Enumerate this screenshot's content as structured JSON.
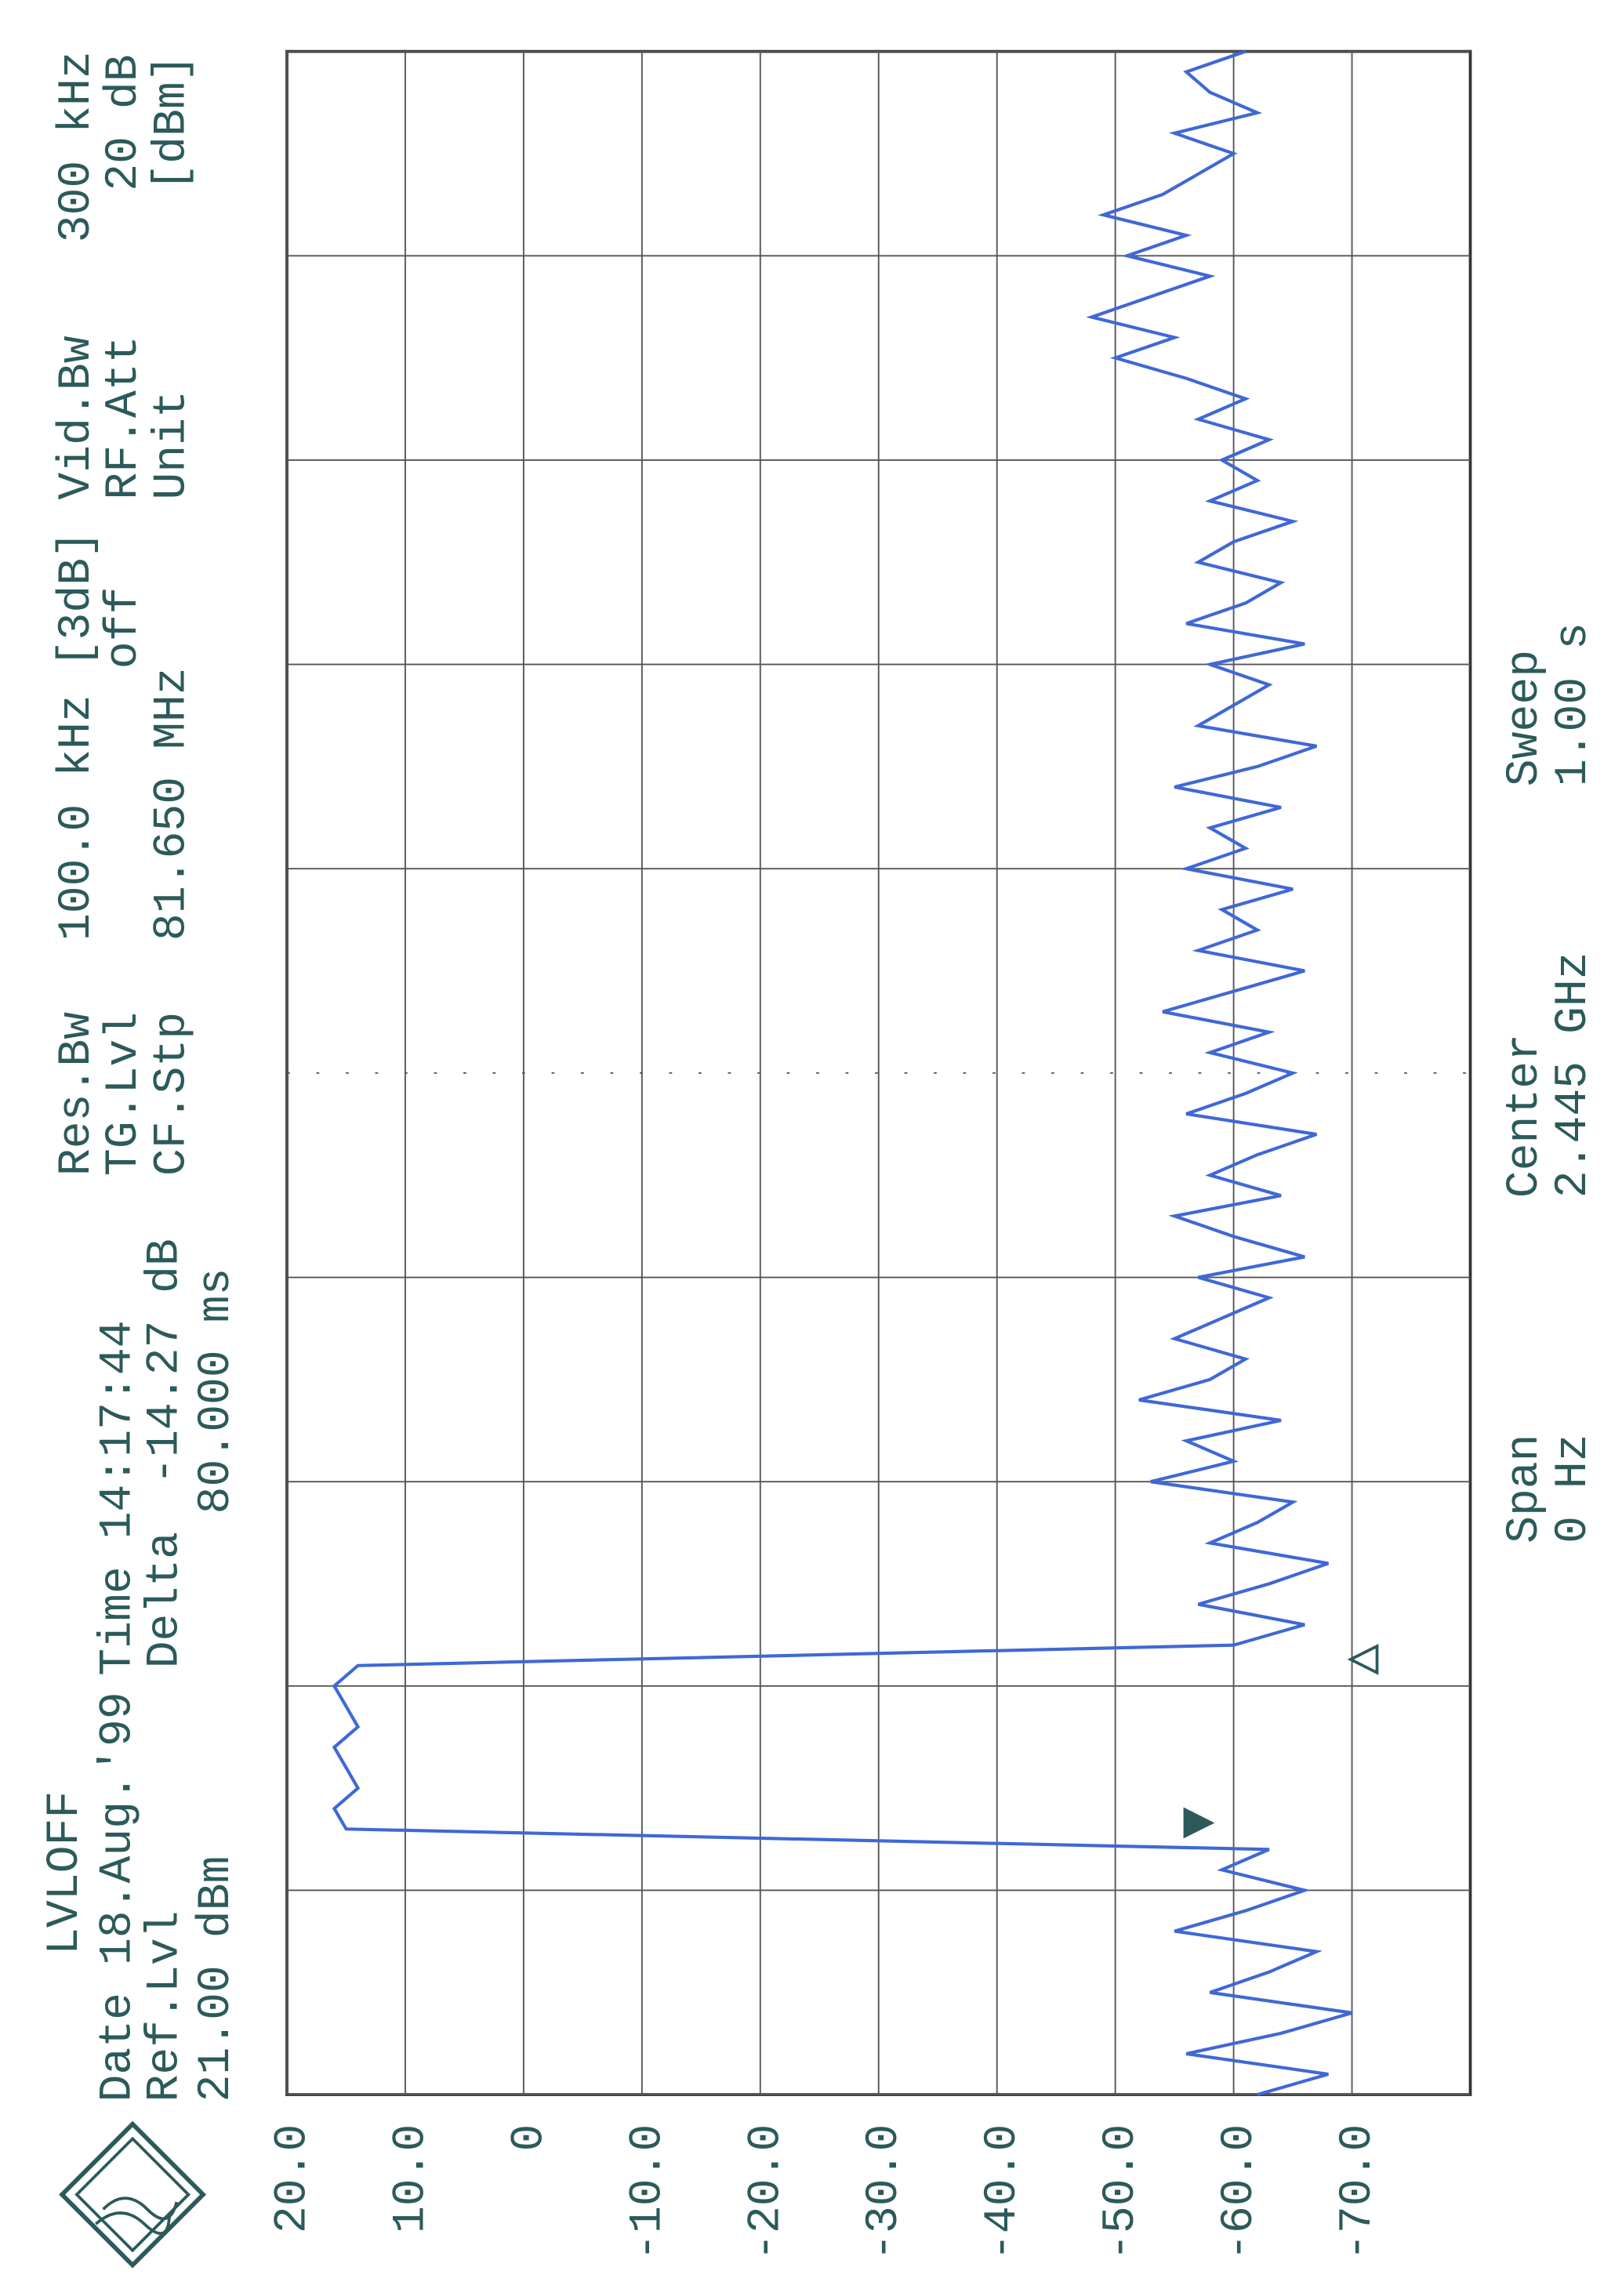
{
  "chart_data": {
    "type": "line",
    "header": {
      "lvl_mode": "LVLOFF",
      "date": "Date 18.Aug.'99",
      "time": "Time 14:17:44",
      "ref_lvl_label": "Ref.Lvl",
      "ref_lvl": "21.00 dBm",
      "delta_label": "Delta",
      "delta_level": "-14.27 dB",
      "delta_time": "80.000 ms",
      "res_bw_label": "Res.Bw",
      "res_bw": "100.0 kHz [3dB]",
      "tg_lvl_label": "TG.Lvl",
      "tg_lvl": "off",
      "cf_stp_label": "CF.Stp",
      "cf_stp": "81.650 MHz",
      "vid_bw_label": "Vid.Bw",
      "vid_bw": "300 kHz",
      "rf_att_label": "RF.Att",
      "rf_att": "20 dB",
      "unit_label": "Unit",
      "unit": "[dBm]"
    },
    "footer": {
      "span_label": "Span",
      "span": "0 Hz",
      "center_label": "Center",
      "center": "2.445 GHz",
      "sweep_label": "Sweep",
      "sweep": "1.00 s"
    },
    "color": "#3f68d6",
    "x": [
      0,
      0.01,
      0.02,
      0.03,
      0.04,
      0.05,
      0.06,
      0.07,
      0.08,
      0.09,
      0.1,
      0.11,
      0.12,
      0.13,
      0.14,
      0.15,
      0.16,
      0.17,
      0.18,
      0.19,
      0.2,
      0.21,
      0.22,
      0.23,
      0.24,
      0.25,
      0.26,
      0.27,
      0.28,
      0.29,
      0.3,
      0.31,
      0.32,
      0.33,
      0.34,
      0.35,
      0.36,
      0.37,
      0.38,
      0.39,
      0.4,
      0.41,
      0.42,
      0.43,
      0.44,
      0.45,
      0.46,
      0.47,
      0.48,
      0.49,
      0.5,
      0.51,
      0.52,
      0.53,
      0.54,
      0.55,
      0.56,
      0.57,
      0.58,
      0.59,
      0.6,
      0.61,
      0.62,
      0.63,
      0.64,
      0.65,
      0.66,
      0.67,
      0.68,
      0.69,
      0.7,
      0.71,
      0.72,
      0.73,
      0.74,
      0.75,
      0.76,
      0.77,
      0.78,
      0.79,
      0.8,
      0.81,
      0.82,
      0.83,
      0.84,
      0.85,
      0.86,
      0.87,
      0.88,
      0.89,
      0.9,
      0.91,
      0.92,
      0.93,
      0.94,
      0.95,
      0.96,
      0.97,
      0.98,
      0.99,
      1
    ],
    "values": [
      -62,
      -68,
      -56,
      -64,
      -70,
      -58,
      -63,
      -67,
      -55,
      -61,
      -66,
      -59,
      -63,
      15,
      16,
      14,
      15,
      16,
      14,
      15,
      16,
      14,
      -60,
      -66,
      -57,
      -63,
      -68,
      -58,
      -62,
      -65,
      -53,
      -60,
      -56,
      -64,
      -52,
      -58,
      -61,
      -55,
      -59,
      -63,
      -57,
      -66,
      -60,
      -55,
      -64,
      -58,
      -62,
      -67,
      -56,
      -61,
      -65,
      -58,
      -63,
      -54,
      -60,
      -66,
      -57,
      -62,
      -59,
      -65,
      -56,
      -61,
      -58,
      -64,
      -55,
      -62,
      -67,
      -57,
      -60,
      -63,
      -58,
      -66,
      -56,
      -61,
      -64,
      -57,
      -60,
      -65,
      -58,
      -62,
      -59,
      -63,
      -57,
      -61,
      -56,
      -50,
      -55,
      -48,
      -53,
      -58,
      -51,
      -56,
      -49,
      -54,
      -57,
      -60,
      -55,
      -62,
      -58,
      -56,
      -61
    ],
    "markers": [
      {
        "x": 0.133,
        "value": -57
      },
      {
        "x": 0.213,
        "value": -71
      }
    ],
    "xlim": [
      0,
      1
    ],
    "xgrid": [
      0,
      0.1,
      0.2,
      0.3,
      0.4,
      0.5,
      0.6,
      0.7,
      0.8,
      0.9,
      1
    ],
    "ylim": [
      -80,
      20
    ],
    "yticks": [
      {
        "value": 20,
        "label": "20.0"
      },
      {
        "value": 10,
        "label": "10.0"
      },
      0,
      {
        "value": -10,
        "label": "-10.0"
      },
      {
        "value": -20,
        "label": "-20.0"
      },
      {
        "value": -30,
        "label": "-30.0"
      },
      {
        "value": -40,
        "label": "-40.0"
      },
      {
        "value": -50,
        "label": "-50.0"
      },
      {
        "value": -60,
        "label": "-60.0"
      },
      {
        "value": -70,
        "label": "-70.0"
      }
    ],
    "grid": true
  }
}
